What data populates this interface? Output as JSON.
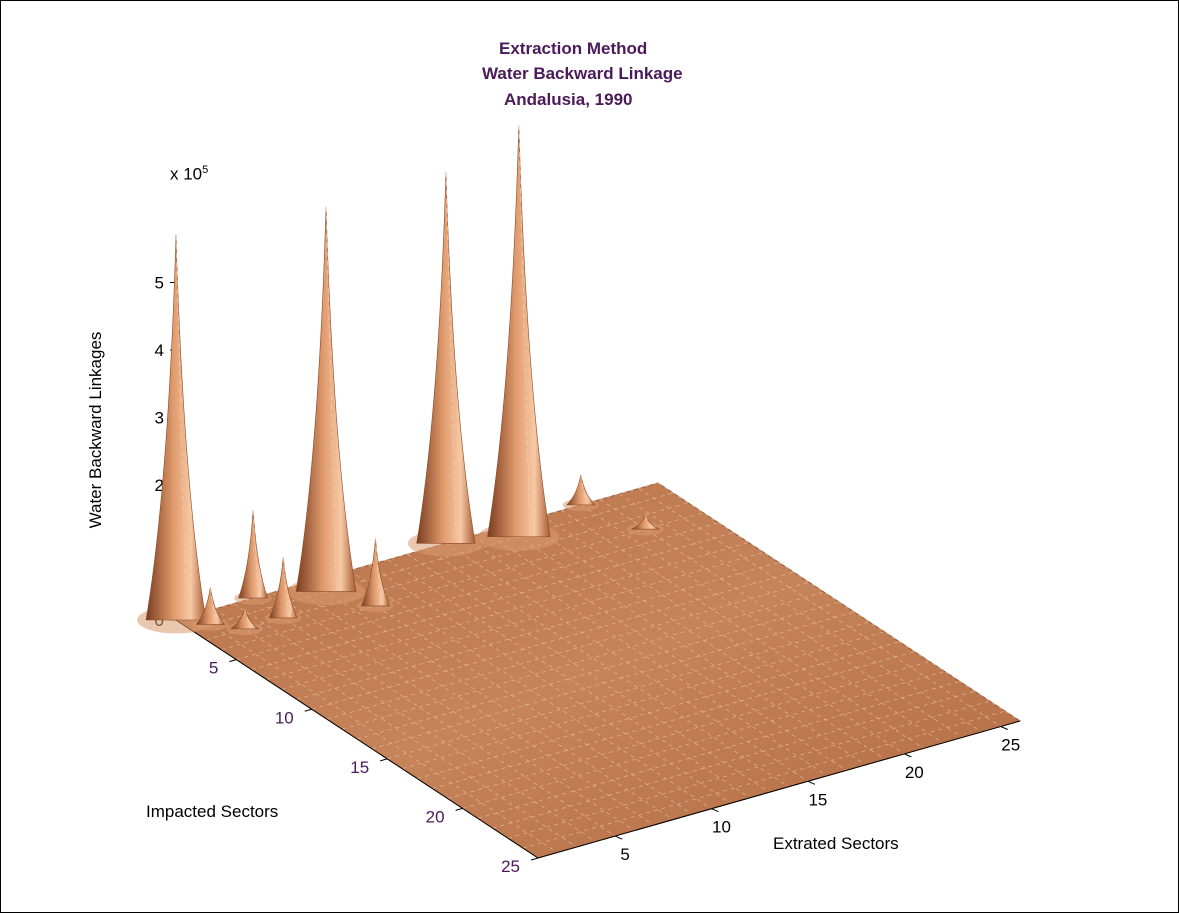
{
  "chart_data": {
    "type": "surface",
    "title_lines": [
      "Extraction Method",
      "Water Backward Linkage",
      "Andalusia, 1990"
    ],
    "xlabel": "Extrated Sectors",
    "ylabel": "Impacted Sectors",
    "zlabel": "Water Backward Linkages",
    "z_exponent_label": "x 10",
    "z_exponent_power": "5",
    "x_ticks": [
      "5",
      "10",
      "15",
      "20",
      "25"
    ],
    "y_ticks": [
      "5",
      "10",
      "15",
      "20",
      "25"
    ],
    "z_ticks": [
      "0",
      "1",
      "2",
      "3",
      "4",
      "5"
    ],
    "xlim": [
      1,
      26
    ],
    "ylim": [
      1,
      25
    ],
    "zlim": [
      0,
      5.7
    ],
    "surface_color": "#c8845a",
    "title_color": "#4b1a5a",
    "tick_color_y": "#4b1a5a",
    "grid": false,
    "peaks": [
      {
        "extracted": 1,
        "impacted": 1,
        "value": 5.7
      },
      {
        "extracted": 2,
        "impacted": 2,
        "value": 0.55
      },
      {
        "extracted": 3,
        "impacted": 3,
        "value": 0.3
      },
      {
        "extracted": 5,
        "impacted": 1,
        "value": 1.3
      },
      {
        "extracted": 5,
        "impacted": 3,
        "value": 0.9
      },
      {
        "extracted": 8,
        "impacted": 2,
        "value": 5.7
      },
      {
        "extracted": 9,
        "impacted": 4,
        "value": 1.0
      },
      {
        "extracted": 15,
        "impacted": 1,
        "value": 5.5
      },
      {
        "extracted": 18,
        "impacted": 2,
        "value": 6.1
      },
      {
        "extracted": 22,
        "impacted": 1,
        "value": 0.45
      },
      {
        "extracted": 23,
        "impacted": 4,
        "value": 0.2
      }
    ]
  }
}
